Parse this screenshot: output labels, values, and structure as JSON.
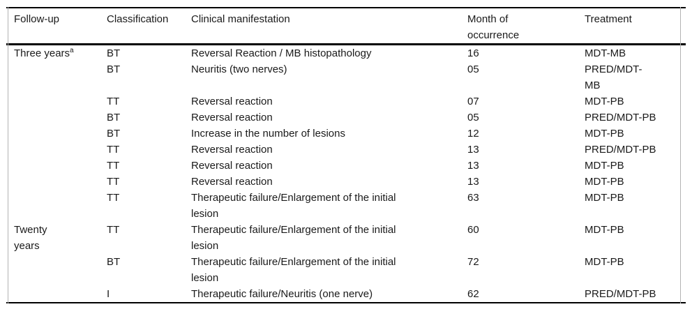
{
  "table": {
    "columns": [
      {
        "label": "Follow-up"
      },
      {
        "label": "Classification"
      },
      {
        "label": "Clinical manifestation"
      },
      {
        "label": "Month of\noccurrence"
      },
      {
        "label": "Treatment"
      }
    ],
    "rows": [
      {
        "follow_up": "Three years",
        "follow_up_sup": "a",
        "classification": "BT",
        "manifestation": "Reversal Reaction / MB histopathology",
        "month": "16",
        "treatment": "MDT-MB"
      },
      {
        "follow_up": "",
        "classification": "BT",
        "manifestation": "Neuritis (two nerves)",
        "month": "05",
        "treatment": "PRED/MDT-\nMB"
      },
      {
        "follow_up": "",
        "classification": "TT",
        "manifestation": "Reversal reaction",
        "month": "07",
        "treatment": "MDT-PB"
      },
      {
        "follow_up": "",
        "classification": "BT",
        "manifestation": "Reversal reaction",
        "month": "05",
        "treatment": "PRED/MDT-PB"
      },
      {
        "follow_up": "",
        "classification": "BT",
        "manifestation": "Increase in the number of lesions",
        "month": "12",
        "treatment": "MDT-PB"
      },
      {
        "follow_up": "",
        "classification": "TT",
        "manifestation": "Reversal reaction",
        "month": "13",
        "treatment": "PRED/MDT-PB"
      },
      {
        "follow_up": "",
        "classification": "TT",
        "manifestation": "Reversal reaction",
        "month": "13",
        "treatment": "MDT-PB"
      },
      {
        "follow_up": "",
        "classification": "TT",
        "manifestation": "Reversal reaction",
        "month": "13",
        "treatment": "MDT-PB"
      },
      {
        "follow_up": "",
        "classification": "TT",
        "manifestation": "Therapeutic failure/Enlargement of the initial\nlesion",
        "month": "63",
        "treatment": "MDT-PB"
      },
      {
        "follow_up": "Twenty\nyears",
        "classification": "TT",
        "manifestation": "Therapeutic failure/Enlargement of the initial\nlesion",
        "month": "60",
        "treatment": "MDT-PB"
      },
      {
        "follow_up": "",
        "classification": "BT",
        "manifestation": "Therapeutic failure/Enlargement of the initial\nlesion",
        "month": "72",
        "treatment": "MDT-PB"
      },
      {
        "follow_up": "",
        "classification": "I",
        "manifestation": "Therapeutic failure/Neuritis (one nerve)",
        "month": "62",
        "treatment": "PRED/MDT-PB"
      }
    ]
  },
  "colors": {
    "rule": "#000000",
    "frame_line": "#b3b3b3",
    "text": "#1a1a1a",
    "background": "#ffffff"
  }
}
